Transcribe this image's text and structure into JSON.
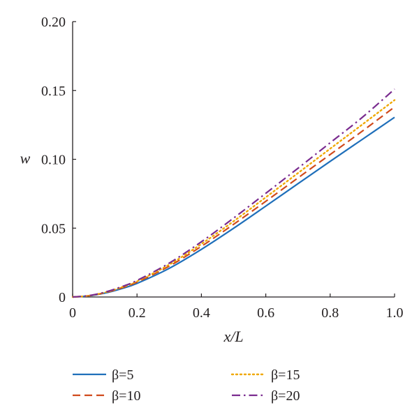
{
  "chart_data": {
    "type": "line",
    "title": "",
    "xlabel": "x/L",
    "ylabel": "w",
    "xlim": [
      0,
      1.0
    ],
    "ylim": [
      0,
      0.2
    ],
    "xticks": [
      0,
      0.2,
      0.4,
      0.6,
      0.8,
      1.0
    ],
    "xtick_labels": [
      "0",
      "0.2",
      "0.4",
      "0.6",
      "0.8",
      "1.0"
    ],
    "yticks": [
      0,
      0.05,
      0.1,
      0.15,
      0.2
    ],
    "ytick_labels": [
      "0",
      "0.05",
      "0.10",
      "0.15",
      "0.20"
    ],
    "grid": false,
    "legend_position": "bottom",
    "x": [
      0,
      0.05,
      0.1,
      0.15,
      0.2,
      0.3,
      0.4,
      0.5,
      0.6,
      0.7,
      0.8,
      0.9,
      1.0
    ],
    "series": [
      {
        "name": "β=5",
        "color": "#1f6fba",
        "dash": "solid",
        "values": [
          0,
          0.0008,
          0.0028,
          0.0059,
          0.0099,
          0.0208,
          0.0346,
          0.0499,
          0.066,
          0.0823,
          0.0985,
          0.1145,
          0.1305
        ]
      },
      {
        "name": "β=10",
        "color": "#d04a1c",
        "dash": "dashed",
        "values": [
          0,
          0.0009,
          0.0031,
          0.0065,
          0.0108,
          0.0224,
          0.0368,
          0.0528,
          0.0695,
          0.0865,
          0.1035,
          0.1205,
          0.138
        ]
      },
      {
        "name": "β=15",
        "color": "#f0a800",
        "dash": "dotted",
        "values": [
          0,
          0.0009,
          0.0033,
          0.0069,
          0.0114,
          0.0235,
          0.0385,
          0.055,
          0.0724,
          0.09,
          0.1077,
          0.1253,
          0.143
        ]
      },
      {
        "name": "β=20",
        "color": "#7a2b8f",
        "dash": "dashdot",
        "values": [
          0,
          0.001,
          0.0035,
          0.0073,
          0.012,
          0.0246,
          0.0401,
          0.0573,
          0.0753,
          0.0935,
          0.112,
          0.1305,
          0.151
        ]
      }
    ]
  }
}
